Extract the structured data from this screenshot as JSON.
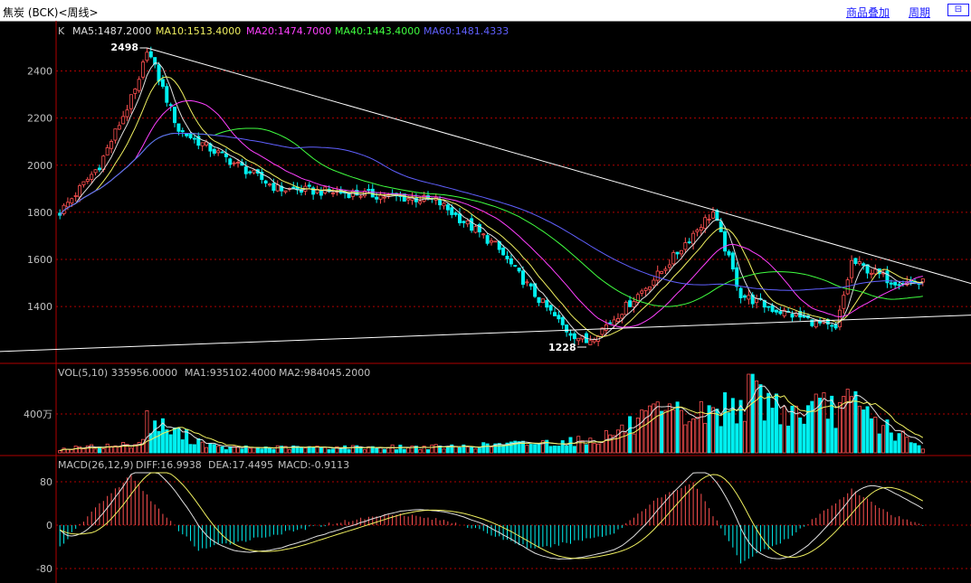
{
  "window": {
    "title": "焦炭 (BCK)<周线>",
    "overlay_label": "商品叠加",
    "period_label": "周期",
    "restore_icon_text": "⊟"
  },
  "colors": {
    "up": "#ff5050",
    "down": "#00f0f0",
    "ma5": "#e0e0e0",
    "ma10": "#f0f060",
    "ma20": "#ff40ff",
    "ma40": "#40ff40",
    "ma60": "#6060ff",
    "grid": "#b00000",
    "trendline": "#ffffff"
  },
  "legend": {
    "k_label": "K",
    "ma5": "MA5:1487.2000",
    "ma10": "MA10:1513.4000",
    "ma20": "MA20:1474.7000",
    "ma40": "MA40:1443.4000",
    "ma60": "MA60:1481.4333",
    "vol": "VOL(5,10)  335956.0000",
    "vol_ma1": "MA1:935102.4000",
    "vol_ma2": "MA2:984045.2000",
    "macd": "MACD(26,12,9)",
    "diff": "DIFF:16.9938",
    "dea": "DEA:17.4495",
    "macd_val": "MACD:-0.9113"
  },
  "annotations": {
    "high": "2498",
    "low": "1228"
  },
  "chart_data": [
    {
      "type": "candlestick",
      "name": "price",
      "y_ticks": [
        "2400",
        "2200",
        "2000",
        "1800",
        "1600",
        "1400"
      ],
      "ylim": [
        1190,
        2560
      ],
      "high_marker": 2498,
      "low_marker": 1228,
      "key_points": [
        {
          "week": 0,
          "close": 1800
        },
        {
          "week": 10,
          "close": 2000
        },
        {
          "week": 20,
          "close": 2350
        },
        {
          "week": 22,
          "close": 2498
        },
        {
          "week": 30,
          "close": 2150
        },
        {
          "week": 45,
          "close": 2000
        },
        {
          "week": 55,
          "close": 1900
        },
        {
          "week": 75,
          "close": 1880
        },
        {
          "week": 95,
          "close": 1850
        },
        {
          "week": 110,
          "close": 1660
        },
        {
          "week": 120,
          "close": 1450
        },
        {
          "week": 128,
          "close": 1300
        },
        {
          "week": 133,
          "close": 1250
        },
        {
          "week": 140,
          "close": 1350
        },
        {
          "week": 152,
          "close": 1550
        },
        {
          "week": 162,
          "close": 1750
        },
        {
          "week": 165,
          "close": 1800
        },
        {
          "week": 172,
          "close": 1450
        },
        {
          "week": 180,
          "close": 1390
        },
        {
          "week": 188,
          "close": 1350
        },
        {
          "week": 196,
          "close": 1300
        },
        {
          "week": 200,
          "close": 1590
        },
        {
          "week": 210,
          "close": 1510
        },
        {
          "week": 218,
          "close": 1500
        }
      ],
      "trendlines": [
        {
          "from": [
            22,
            2498
          ],
          "to": [
            236,
            1470
          ]
        },
        {
          "from": [
            -30,
            1200
          ],
          "to": [
            240,
            1370
          ]
        }
      ]
    },
    {
      "type": "bar",
      "name": "volume",
      "y_ticks": [
        "400万"
      ],
      "unit": "万",
      "key_points": [
        {
          "week": 0,
          "value": 40
        },
        {
          "week": 20,
          "value": 90
        },
        {
          "week": 22,
          "value": 320
        },
        {
          "week": 40,
          "value": 50
        },
        {
          "week": 100,
          "value": 60
        },
        {
          "week": 135,
          "value": 130
        },
        {
          "week": 150,
          "value": 360
        },
        {
          "week": 165,
          "value": 400
        },
        {
          "week": 175,
          "value": 610
        },
        {
          "week": 185,
          "value": 400
        },
        {
          "week": 200,
          "value": 480
        },
        {
          "week": 218,
          "value": 34
        }
      ]
    },
    {
      "type": "bar",
      "name": "macd",
      "y_ticks": [
        "80",
        "0",
        "-80"
      ],
      "key_points": [
        {
          "week": 0,
          "value": -40
        },
        {
          "week": 10,
          "value": 40
        },
        {
          "week": 18,
          "value": 92
        },
        {
          "week": 26,
          "value": 20
        },
        {
          "week": 35,
          "value": -45
        },
        {
          "week": 70,
          "value": 5
        },
        {
          "week": 85,
          "value": 22
        },
        {
          "week": 100,
          "value": 5
        },
        {
          "week": 120,
          "value": -45
        },
        {
          "week": 140,
          "value": -15
        },
        {
          "week": 150,
          "value": 45
        },
        {
          "week": 160,
          "value": 80
        },
        {
          "week": 172,
          "value": -68
        },
        {
          "week": 185,
          "value": -20
        },
        {
          "week": 200,
          "value": 65
        },
        {
          "week": 210,
          "value": 20
        },
        {
          "week": 218,
          "value": -1
        }
      ]
    }
  ]
}
